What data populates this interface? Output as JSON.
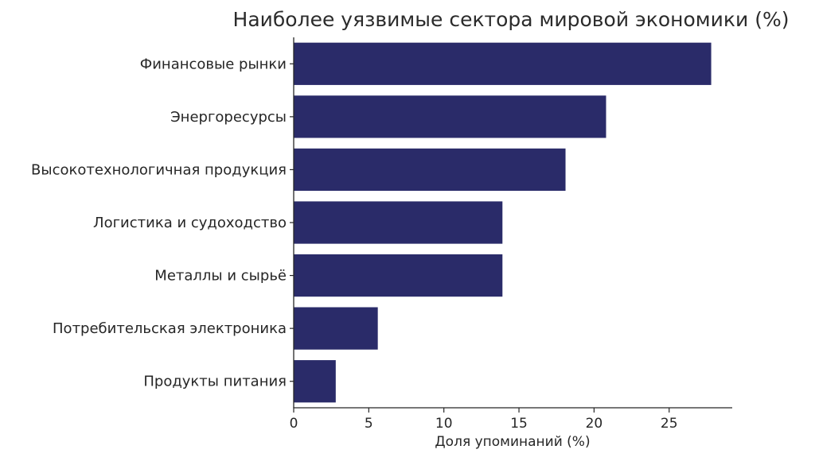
{
  "chart_data": {
    "type": "bar",
    "orientation": "horizontal",
    "title": "Наиболее уязвимые сектора мировой экономики (%)",
    "xlabel": "Доля упоминаний (%)",
    "ylabel": "",
    "categories": [
      "Финансовые рынки",
      "Энергоресурсы",
      "Высокотехнологичная продукция",
      "Логистика и судоходство",
      "Металлы и сырьё",
      "Потребительская электроника",
      "Продукты питания"
    ],
    "values": [
      27.8,
      20.8,
      18.1,
      13.9,
      13.9,
      5.6,
      2.8
    ],
    "xlim": [
      0,
      29.2
    ],
    "xticks": [
      0,
      5,
      10,
      15,
      20,
      25
    ],
    "grid": false,
    "bar_color": "#2a2b69"
  }
}
